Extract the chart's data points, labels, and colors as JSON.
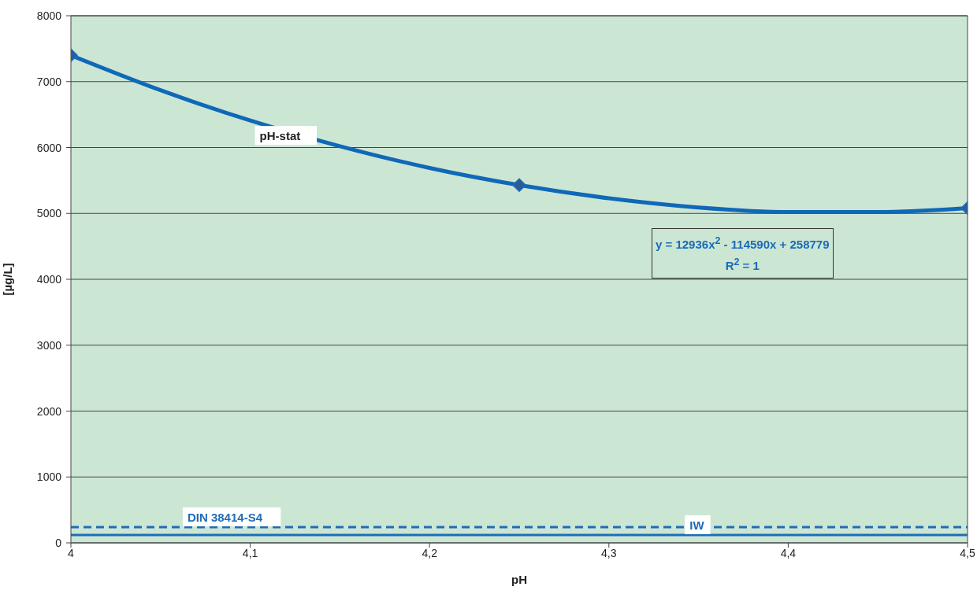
{
  "chart_data": {
    "type": "scatter",
    "xlabel": "pH",
    "ylabel": "[µg/L]",
    "xlim": [
      4,
      4.5
    ],
    "xticks": [
      4,
      {
        "value": 4.1,
        "label": "4,1"
      },
      {
        "value": 4.2,
        "label": "4,2"
      },
      {
        "value": 4.3,
        "label": "4,3"
      },
      {
        "value": 4.4,
        "label": "4,4"
      },
      {
        "value": 4.5,
        "label": "4,5"
      }
    ],
    "ylim": [
      0,
      8000
    ],
    "yticks": [
      0,
      1000,
      2000,
      3000,
      4000,
      5000,
      6000,
      7000,
      8000
    ],
    "grid": "y",
    "legend": false,
    "marker": "diamond",
    "series": [
      {
        "color": "#2b5c9c",
        "x": [
          4,
          4.25,
          4.5
        ],
        "values": [
          7400,
          5430,
          5080
        ]
      },
      {
        "name": "pH-stat",
        "type": "line",
        "color": "#0f68b8",
        "line_style": "solid",
        "marker": "none",
        "x": [
          4,
          4.05,
          4.1,
          4.15,
          4.2,
          4.25,
          4.3,
          4.35,
          4.4,
          4.45,
          4.5
        ],
        "values": [
          7400,
          6870,
          6410,
          6020,
          5690,
          5430,
          5230,
          5090,
          5020,
          5020,
          5080
        ]
      }
    ],
    "ref_lines": [
      {
        "axis": "y",
        "value": 240,
        "label": "DIN 38414-S4",
        "color": "#1f6db5",
        "line_style": "dashed"
      },
      {
        "axis": "y",
        "value": 120,
        "label": "IW",
        "color": "#1f6db5",
        "line_style": "solid"
      }
    ],
    "annotations": [
      "y = 12936x$^{2}$ - 114590x + 258779\nR$^{2}$ = 1"
    ]
  }
}
